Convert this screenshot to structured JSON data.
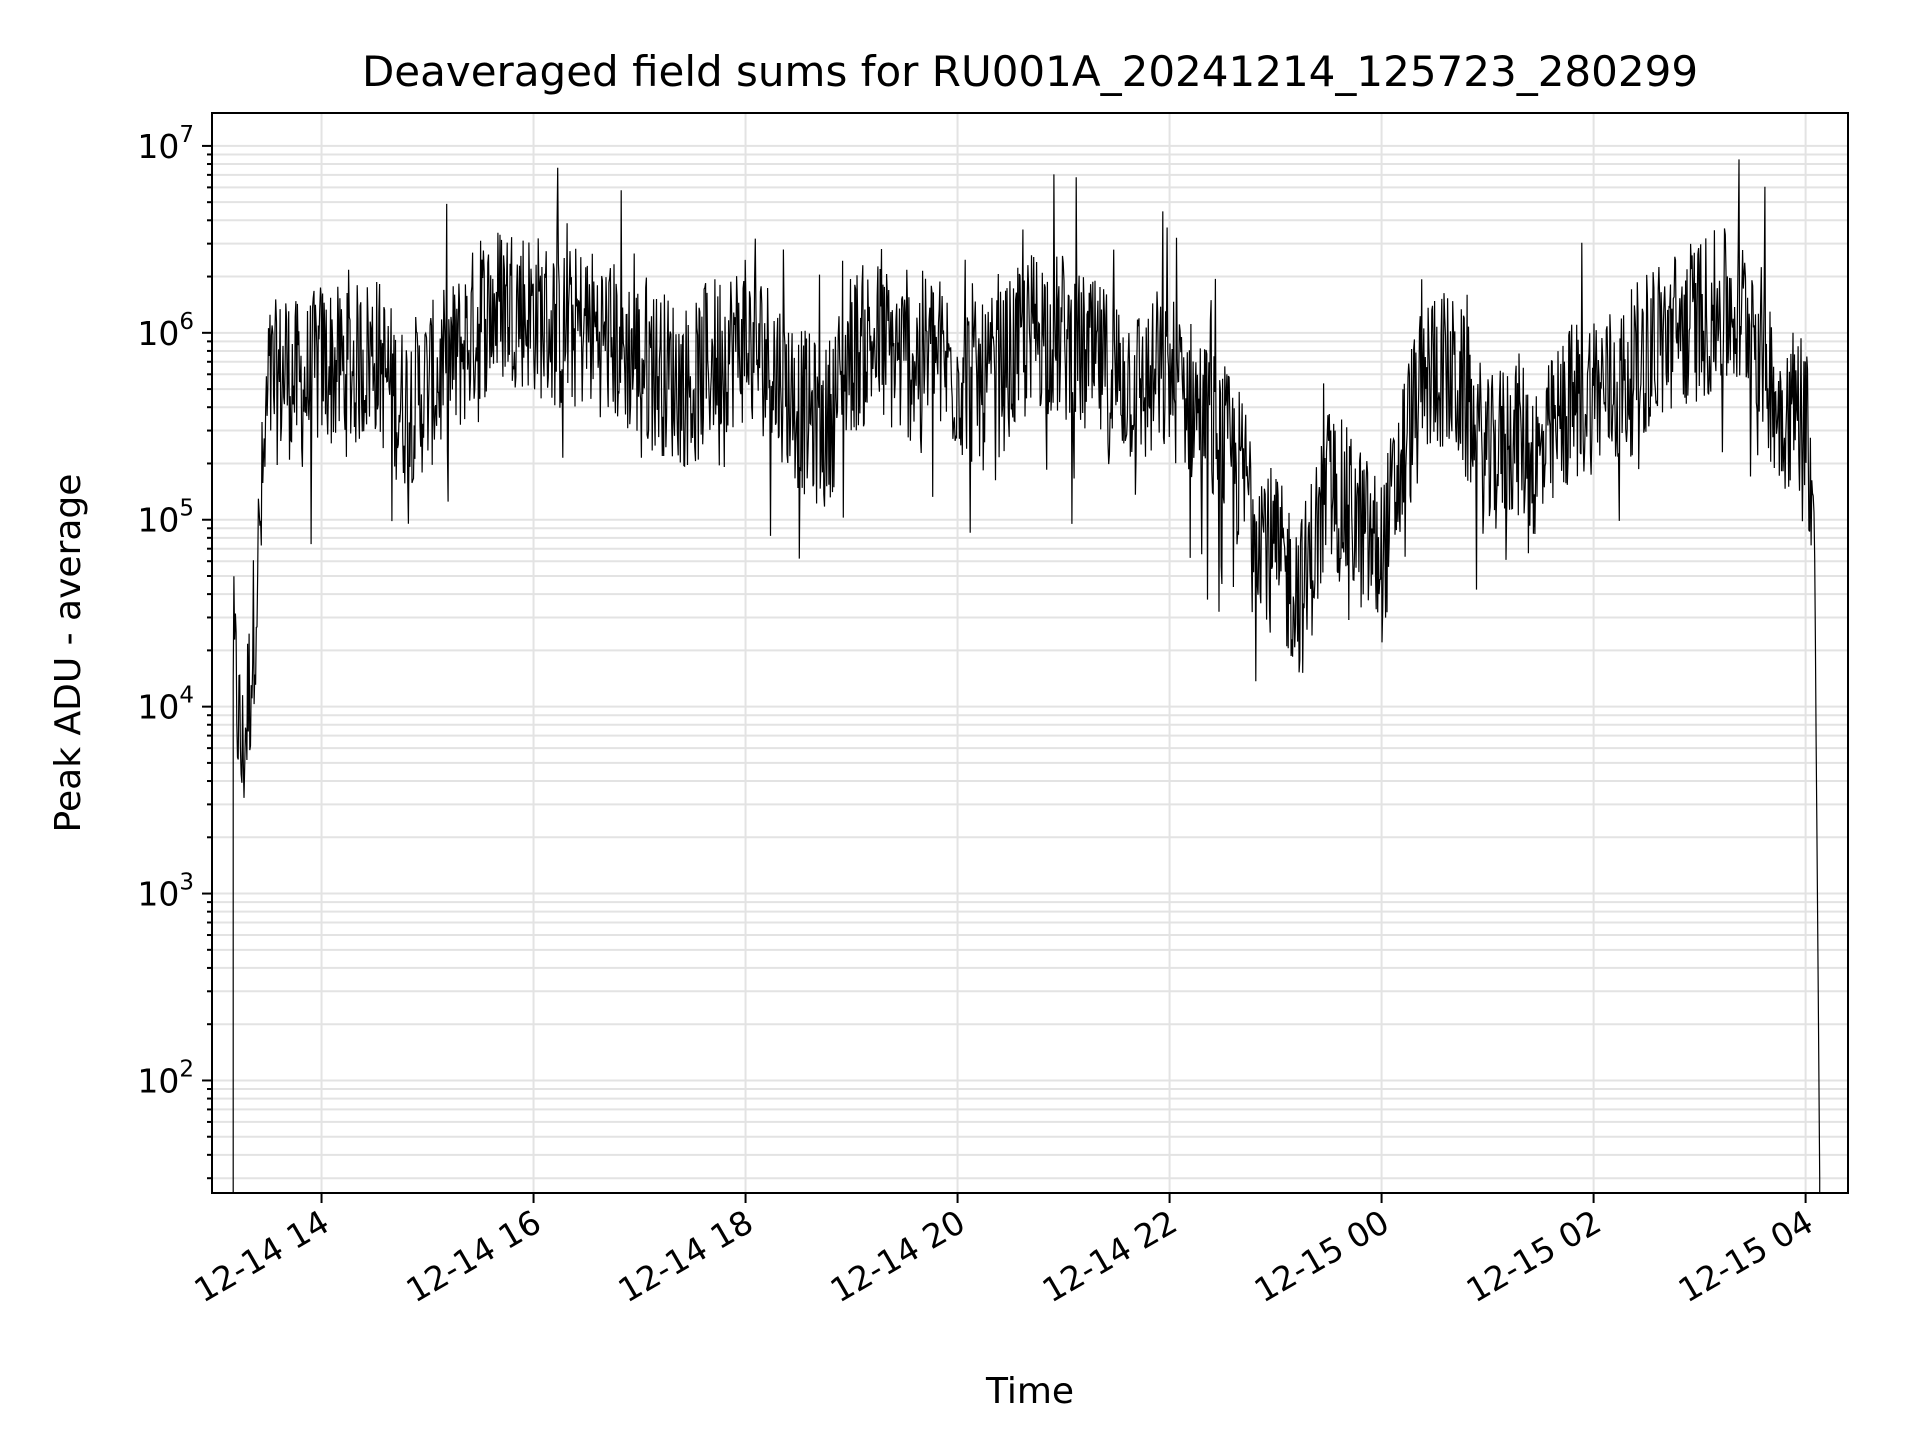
{
  "chart_data": {
    "type": "line",
    "title": "Deaveraged field sums for RU001A_20241214_125723_280299",
    "xlabel": "Time",
    "ylabel": "Peak ADU - average",
    "x_ticks": [
      "12-14 14",
      "12-14 16",
      "12-14 18",
      "12-14 20",
      "12-14 22",
      "12-15 00",
      "12-15 02",
      "12-15 04"
    ],
    "y_ticks": [
      "10^2",
      "10^3",
      "10^4",
      "10^5",
      "10^6",
      "10^7"
    ],
    "xlim": [
      "12-14 12:58",
      "12-15 04:24"
    ],
    "y_scale": "log",
    "ylim": [
      25,
      15000000
    ],
    "grid": true,
    "line_color": "#000000",
    "grid_color": "#e3e3e3",
    "series": [
      {
        "x": [
          "12-14 13:10",
          "12-14 13:15",
          "12-14 13:20",
          "12-14 13:25",
          "12-14 13:30",
          "12-14 13:40",
          "12-14 13:50",
          "12-14 14:00",
          "12-14 14:15",
          "12-14 14:30",
          "12-14 14:45",
          "12-14 15:00",
          "12-14 15:15",
          "12-14 15:30",
          "12-14 15:45",
          "12-14 16:00",
          "12-14 16:15",
          "12-14 16:30",
          "12-14 16:45",
          "12-14 17:00",
          "12-14 17:15",
          "12-14 17:30",
          "12-14 17:45",
          "12-14 18:00",
          "12-14 18:15",
          "12-14 18:30",
          "12-14 18:45",
          "12-14 19:00",
          "12-14 19:15",
          "12-14 19:30",
          "12-14 19:45",
          "12-14 20:00",
          "12-14 20:15",
          "12-14 20:30",
          "12-14 20:45",
          "12-14 21:00",
          "12-14 21:15",
          "12-14 21:30",
          "12-14 21:45",
          "12-14 22:00",
          "12-14 22:15",
          "12-14 22:30",
          "12-14 22:45",
          "12-14 23:00",
          "12-14 23:15",
          "12-14 23:30",
          "12-14 23:45",
          "12-15 00:00",
          "12-15 00:15",
          "12-15 00:30",
          "12-15 00:45",
          "12-15 01:00",
          "12-15 01:15",
          "12-15 01:30",
          "12-15 01:45",
          "12-15 02:00",
          "12-15 02:15",
          "12-15 02:30",
          "12-15 02:45",
          "12-15 03:00",
          "12-15 03:15",
          "12-15 03:30",
          "12-15 03:45",
          "12-15 04:00",
          "12-15 04:05",
          "12-15 04:08"
        ],
        "values": [
          20000,
          5000,
          15000,
          80000,
          500000,
          600000,
          500000,
          700000,
          600000,
          800000,
          400000,
          500000,
          700000,
          1200000,
          1500000,
          1300000,
          1000000,
          1100000,
          900000,
          700000,
          600000,
          500000,
          800000,
          900000,
          700000,
          400000,
          300000,
          800000,
          900000,
          700000,
          800000,
          600000,
          500000,
          700000,
          1100000,
          900000,
          700000,
          600000,
          500000,
          600000,
          400000,
          250000,
          150000,
          60000,
          40000,
          150000,
          100000,
          60000,
          300000,
          700000,
          500000,
          200000,
          300000,
          200000,
          400000,
          500000,
          500000,
          800000,
          1000000,
          1200000,
          1300000,
          1200000,
          400000,
          400000,
          100000,
          30
        ]
      }
    ]
  }
}
